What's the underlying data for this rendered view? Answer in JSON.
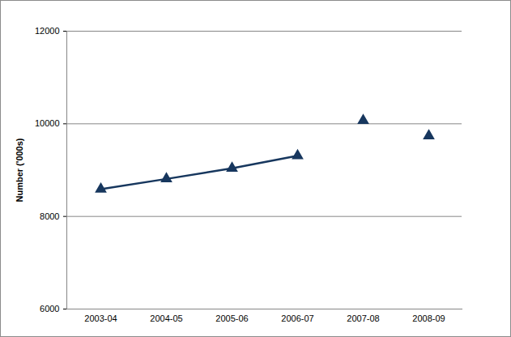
{
  "chart_data": {
    "type": "line",
    "y_label": "Number ('000s)",
    "categories": [
      "2003-04",
      "2004-05",
      "2005-06",
      "2006-07",
      "2007-08",
      "2008-09"
    ],
    "series": [
      {
        "type": "line",
        "marker": "triangle",
        "color": "#17375e",
        "values": [
          8590,
          8810,
          9040,
          9310,
          null,
          null
        ]
      },
      {
        "type": "scatter",
        "marker": "triangle",
        "color": "#17375e",
        "values": [
          null,
          null,
          null,
          null,
          10070,
          9740
        ]
      }
    ],
    "ylim": [
      6000,
      12000
    ],
    "yticks": [
      6000,
      8000,
      10000,
      12000
    ],
    "grid": true
  }
}
